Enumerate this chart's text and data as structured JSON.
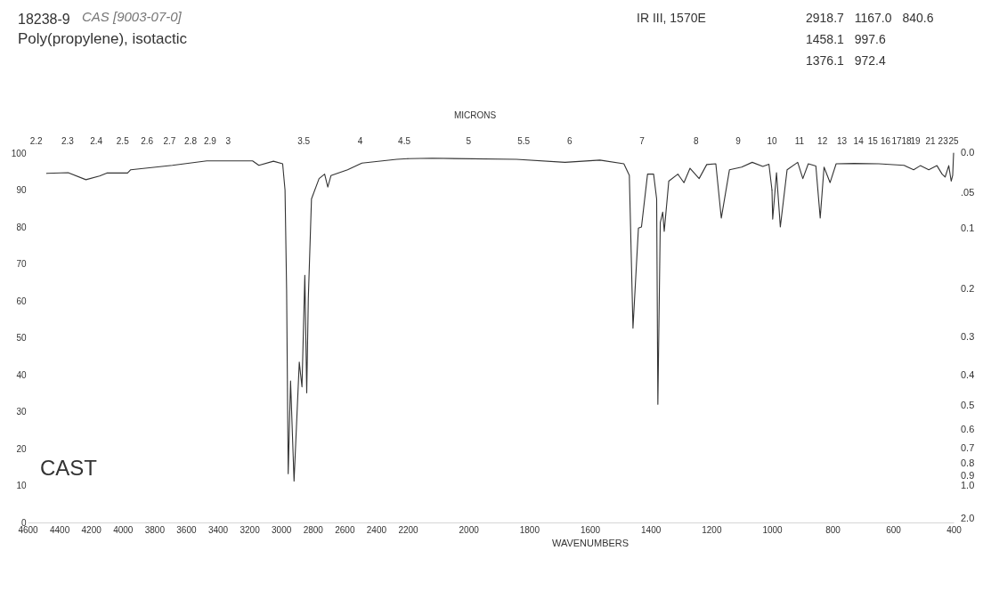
{
  "chart_data": [
    {
      "type": "line",
      "title": "Poly(propylene), isotactic",
      "annotations": [
        "18238-9",
        "CAS [9003-07-0]",
        "IR III, 1570E",
        "2918.7 1167.0 840.6",
        "1458.1 997.6",
        "1376.1 972.4",
        "CAST",
        "2.2",
        "2.3",
        "2.4",
        "2.5",
        "2.6",
        "2.7",
        "2.8",
        "2.9",
        "3",
        "3.5",
        "4",
        "4.5"
      ],
      "x": [
        4480,
        4344,
        4232,
        4146,
        4100,
        3969,
        3949,
        3686,
        3469,
        3180,
        3140,
        3048,
        2990,
        2975,
        2965,
        2955,
        2940,
        2918,
        2885,
        2868,
        2850,
        2838,
        2828,
        2808,
        2760,
        2725,
        2705,
        2685,
        2580,
        2490,
        2270,
        2200
      ],
      "series": [
        {
          "color": "#333333",
          "values": [
            94.5,
            94.7,
            92.8,
            93.8,
            94.6,
            94.6,
            95.5,
            96.7,
            97.9,
            97.9,
            96.7,
            97.8,
            97.1,
            90,
            63,
            13.2,
            38.3,
            11.2,
            43.4,
            36.7,
            66.9,
            35.1,
            60.6,
            87.6,
            93.1,
            94.3,
            90.8,
            93.9,
            95.5,
            97.3,
            98.3,
            98.5
          ]
        }
      ],
      "xlim": [
        4600,
        2200
      ],
      "xticks": [
        4600,
        4400,
        4200,
        4000,
        3800,
        3600,
        3400,
        3200,
        3000,
        2800,
        2600,
        2400,
        2200
      ],
      "ylim": [
        0,
        100
      ],
      "yticks": [
        0,
        10,
        20,
        30,
        40,
        50,
        60,
        70,
        80,
        90,
        100
      ]
    },
    {
      "type": "line",
      "xlabel": "WAVENUMBERS",
      "annotations": [
        "MICRONS",
        "5",
        "5.5",
        "6",
        "7",
        "8",
        "9"
      ],
      "x": [
        2200,
        2120,
        1842,
        1682,
        1567,
        1488,
        1470,
        1458,
        1440,
        1430,
        1410,
        1390,
        1380,
        1376,
        1368,
        1360,
        1355,
        1340,
        1310,
        1290,
        1270,
        1240,
        1215,
        1185,
        1167,
        1140,
        1100,
        1065,
        1030,
        1010,
        1000
      ],
      "series": [
        {
          "color": "#333333",
          "values": [
            98.5,
            98.6,
            98.3,
            97.5,
            98.1,
            97.1,
            94,
            52.6,
            79.7,
            80,
            94.3,
            94.3,
            87.6,
            32,
            81.2,
            84,
            78.8,
            92.4,
            94.3,
            92,
            95.9,
            93.1,
            96.9,
            97.1,
            82.4,
            95.5,
            96.2,
            97.5,
            96.4,
            97,
            90
          ]
        }
      ],
      "xlim": [
        2200,
        1000
      ],
      "xticks": [
        2000,
        1800,
        1600,
        1400,
        1200,
        1000
      ],
      "ylim": [
        0,
        100
      ],
      "tick_labels": "x"
    },
    {
      "type": "line",
      "annotations": [
        "10",
        "11",
        "12",
        "13",
        "14",
        "15",
        "16",
        "17",
        "18",
        "19",
        "21",
        "23",
        "25",
        "0.0",
        ".05",
        "0.1",
        "0.2",
        "0.3",
        "0.4",
        "0.5",
        "0.6",
        "0.7",
        "0.8",
        "0.9",
        "1.0",
        "2.0"
      ],
      "x": [
        1000,
        997.6,
        985,
        972.4,
        950,
        915,
        898,
        880,
        855,
        840.6,
        828,
        808,
        788,
        729,
        647,
        564,
        532,
        510,
        482,
        455,
        438,
        428,
        416,
        408,
        403,
        400
      ],
      "series": [
        {
          "color": "#333333",
          "values": [
            90,
            82.1,
            94.7,
            80,
            95.5,
            97.5,
            93.1,
            97.1,
            96.5,
            82.4,
            96.2,
            92,
            97.1,
            97.2,
            97.1,
            96.7,
            95.5,
            96.6,
            95.5,
            96.6,
            94.3,
            93.5,
            96.6,
            92.4,
            94,
            100
          ]
        }
      ],
      "xlim": [
        1000,
        400
      ],
      "xticks": [
        800,
        600,
        400
      ],
      "ylim": [
        0,
        100
      ],
      "tick_labels": "x"
    }
  ]
}
